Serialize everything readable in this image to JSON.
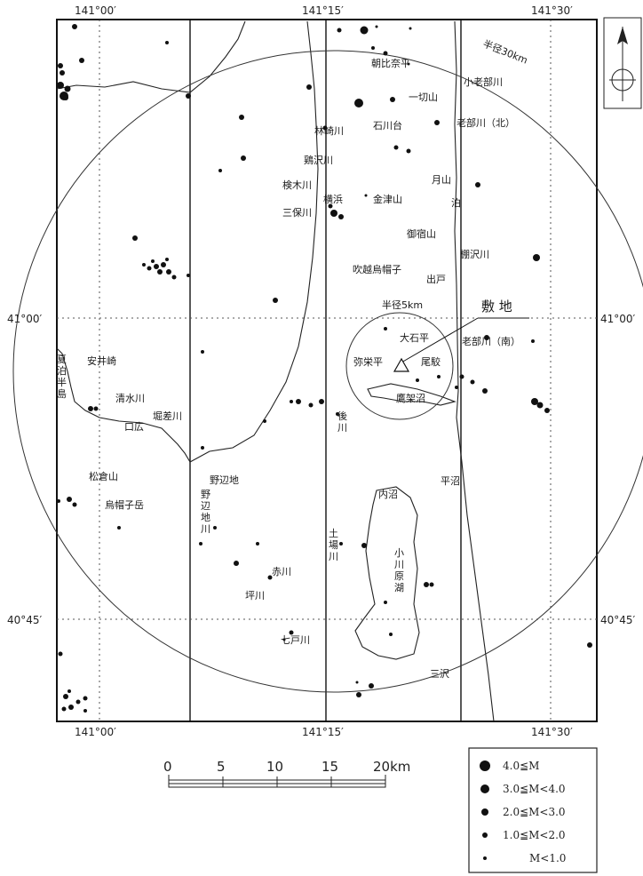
{
  "coords": {
    "top": [
      "141°00′",
      "141°15′",
      "141°30′"
    ],
    "bottom": [
      "141°00′",
      "141°15′",
      "141°30′"
    ],
    "left": [
      "41°00′",
      "40°45′"
    ],
    "right": [
      "41°00′",
      "40°45′"
    ]
  },
  "circles": {
    "outer_label": "半径30km",
    "inner_label": "半径5km"
  },
  "site_label": "敷 地",
  "places": {
    "asahinatai": "朝比奈平",
    "ichikiriyama": "一切山",
    "koobegawa": "小老部川",
    "rinzakigawa": "林崎川",
    "ishikawadai": "石川台",
    "oobegawa_n": "老部川（北）",
    "keisawagawa": "鶏沢川",
    "kenokigawa": "検木川",
    "tsukiyama": "月山",
    "tomari": "泊",
    "yokohama": "横浜",
    "kanatsuyama": "金津山",
    "mihogawa": "三保川",
    "goshukuyama": "御宿山",
    "tanasawagawa": "棚沢川",
    "fukkoshi": "吹越烏帽子",
    "dedo": "出戸",
    "oishitai": "大石平",
    "oobegawa_s": "老部川（南）",
    "yaeitai": "弥栄平",
    "obuchi": "尾駮",
    "takahokonuma": "鷹架沼",
    "yasuizaki": "安井崎",
    "natsudomari": "夏泊半島",
    "shimizugawa": "清水川",
    "horisagawa": "堀差川",
    "kuchihiro": "口広",
    "atogawa": "後川",
    "matsukurayama": "松倉山",
    "noheji": "野辺地",
    "eboshidake": "烏帽子岳",
    "uchinuma": "内沼",
    "hiranuma": "平沼",
    "nohejigawa": "野辺地川",
    "dobagawa": "土場川",
    "ogawarako": "小川原湖",
    "akagawa": "赤川",
    "tsubogawa": "坪川",
    "shichinohegawa": "七戸川",
    "misawa": "三沢"
  },
  "scale": {
    "ticks": [
      "0",
      "5",
      "10",
      "15",
      "20km"
    ]
  },
  "legend": {
    "items": [
      {
        "label": "4.0≦M"
      },
      {
        "label": "3.0≦M<4.0"
      },
      {
        "label": "2.0≦M<3.0"
      },
      {
        "label": "1.0≦M<2.0"
      },
      {
        "label": "M<1.0"
      }
    ]
  },
  "compass": {
    "north": "N"
  }
}
